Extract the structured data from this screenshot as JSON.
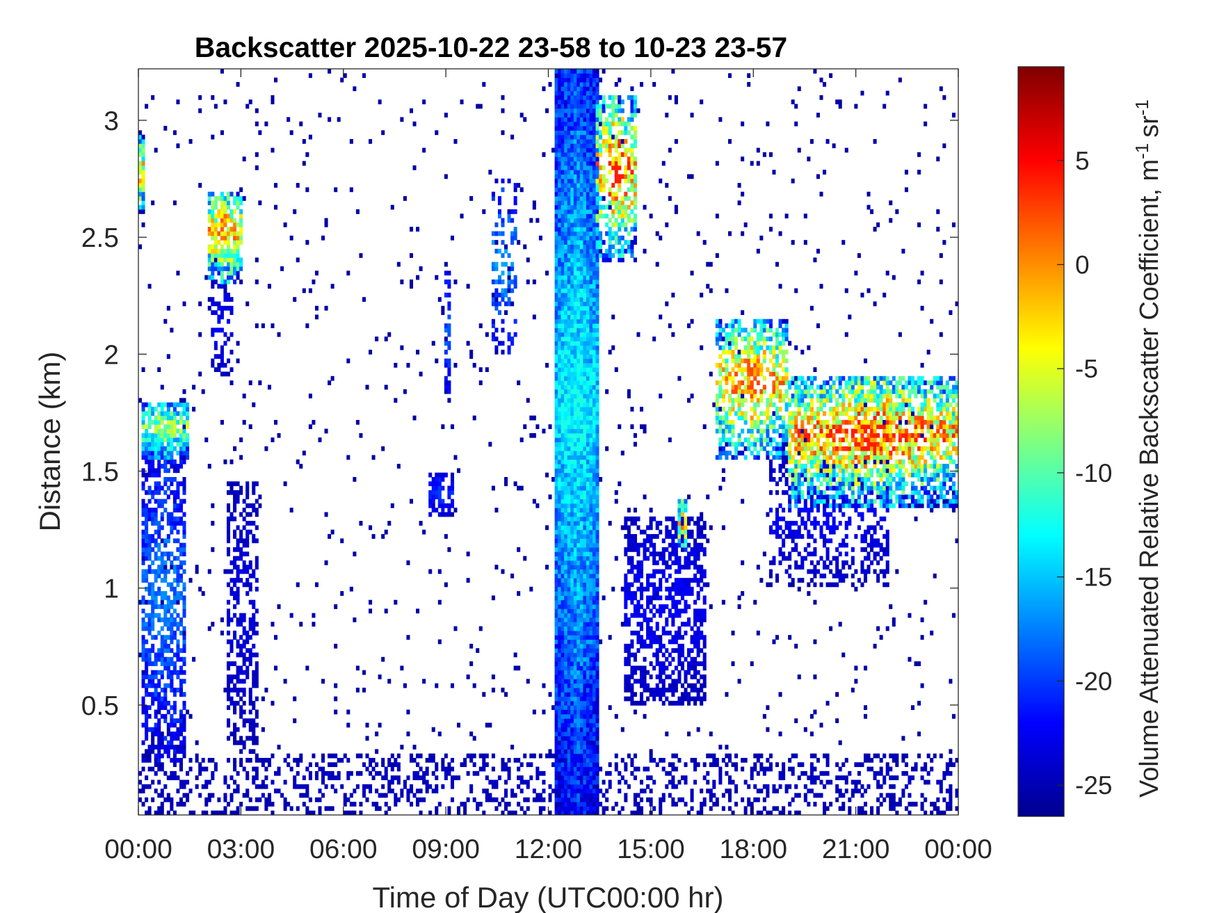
{
  "chart_data": {
    "type": "heatmap",
    "title": "Backscatter 2025-10-22 23-58 to 10-23 23-57",
    "xlabel": "Time of Day (UTC00:00 hr)",
    "ylabel": "Distance (km)",
    "colorbar_label": "Volume Attenuated Relative Backscatter Coefficient, m",
    "colorbar_units": {
      "m_exp": "-1",
      "sr": "sr",
      "sr_exp": "-1"
    },
    "xlim_hours": [
      0,
      24
    ],
    "ylim_km": [
      0.03,
      3.22
    ],
    "clim": [
      -26.5,
      9.5
    ],
    "x_ticks": [
      {
        "hour": 0,
        "label": "00:00"
      },
      {
        "hour": 3,
        "label": "03:00"
      },
      {
        "hour": 6,
        "label": "06:00"
      },
      {
        "hour": 9,
        "label": "09:00"
      },
      {
        "hour": 12,
        "label": "12:00"
      },
      {
        "hour": 15,
        "label": "15:00"
      },
      {
        "hour": 18,
        "label": "18:00"
      },
      {
        "hour": 21,
        "label": "21:00"
      },
      {
        "hour": 24,
        "label": "00:00"
      }
    ],
    "y_ticks": [
      {
        "km": 0.5,
        "label": "0.5"
      },
      {
        "km": 1,
        "label": "1"
      },
      {
        "km": 1.5,
        "label": "1.5"
      },
      {
        "km": 2,
        "label": "2"
      },
      {
        "km": 2.5,
        "label": "2.5"
      },
      {
        "km": 3,
        "label": "3"
      }
    ],
    "colorbar_ticks": [
      {
        "value": -25,
        "label": "-25"
      },
      {
        "value": -20,
        "label": "-20"
      },
      {
        "value": -15,
        "label": "-15"
      },
      {
        "value": -10,
        "label": "-10"
      },
      {
        "value": -5,
        "label": "-5"
      },
      {
        "value": 0,
        "label": "0"
      },
      {
        "value": 5,
        "label": "5"
      }
    ],
    "colormap": "jet",
    "grid": false,
    "background_color": "#ffffff",
    "features": [
      {
        "t0": 0.0,
        "t1": 0.15,
        "z0": 2.6,
        "z1": 2.93,
        "peak": 2.0,
        "density": 0.9,
        "desc": "thin layer near 2.8 km at start"
      },
      {
        "t0": 0.05,
        "t1": 1.5,
        "z0": 1.55,
        "z1": 1.8,
        "peak": -5,
        "density": 0.85,
        "desc": "cloud base ~1.6 km 00:00-01:30"
      },
      {
        "t0": 0.1,
        "t1": 1.4,
        "z0": 0.25,
        "z1": 1.55,
        "peak": -17,
        "density": 0.6,
        "desc": "boundary layer below cloud"
      },
      {
        "t0": 2.0,
        "t1": 3.0,
        "z0": 2.3,
        "z1": 2.7,
        "peak": 2.0,
        "density": 0.75,
        "desc": "rising layer 2.3-2.7 km around 02:30"
      },
      {
        "t0": 2.1,
        "t1": 2.8,
        "z0": 1.9,
        "z1": 2.3,
        "peak": -22,
        "density": 0.4,
        "desc": "sparse returns below layer"
      },
      {
        "t0": 2.6,
        "t1": 3.5,
        "z0": 0.3,
        "z1": 1.45,
        "peak": -23,
        "density": 0.45,
        "desc": "sparse column 02:40-03:30"
      },
      {
        "t0": 8.5,
        "t1": 9.2,
        "z0": 1.3,
        "z1": 1.5,
        "peak": -20,
        "density": 0.6,
        "desc": "small patch near 1.4 km at 09:00"
      },
      {
        "t0": 8.95,
        "t1": 9.15,
        "z0": 1.8,
        "z1": 2.35,
        "peak": -18,
        "density": 0.6,
        "desc": "streak near 2 km at 09:00"
      },
      {
        "t0": 10.3,
        "t1": 11.1,
        "z0": 2.0,
        "z1": 2.75,
        "peak": -16,
        "density": 0.35,
        "desc": "sparse high returns 10:30-11:00"
      },
      {
        "t0": 12.15,
        "t1": 13.5,
        "z0": 0.03,
        "z1": 3.22,
        "peak": -12,
        "density": 1.0,
        "desc": "full-column precipitation 12:10-13:30"
      },
      {
        "t0": 13.4,
        "t1": 14.6,
        "z0": 2.4,
        "z1": 3.1,
        "peak": 4.0,
        "density": 0.6,
        "desc": "high cloud 2.6-3.1 km 13:30-14:30"
      },
      {
        "t0": 14.2,
        "t1": 16.6,
        "z0": 0.5,
        "z1": 1.3,
        "peak": -22,
        "density": 0.55,
        "desc": "lower layer 14:30-16:30"
      },
      {
        "t0": 15.8,
        "t1": 16.1,
        "z0": 1.15,
        "z1": 1.38,
        "peak": 1.0,
        "density": 0.7,
        "desc": "small cloud near 1.3 km at 16:00"
      },
      {
        "t0": 16.9,
        "t1": 19.0,
        "z0": 1.55,
        "z1": 2.15,
        "peak": 2.5,
        "density": 0.6,
        "desc": "rising layer 17:00-19:00 peaking near 2 km"
      },
      {
        "t0": 19.0,
        "t1": 24.0,
        "z0": 1.35,
        "z1": 1.9,
        "peak": 4.0,
        "density": 0.7,
        "desc": "cloud layer ~1.7 km 19:00-24:00"
      },
      {
        "t0": 18.5,
        "t1": 22.0,
        "z0": 1.0,
        "z1": 1.55,
        "peak": -22,
        "density": 0.35,
        "desc": "sparse returns below layer"
      },
      {
        "t0": 0.0,
        "t1": 24.0,
        "z0": 0.03,
        "z1": 0.3,
        "peak": -24,
        "density": 0.28,
        "desc": "near-surface noise"
      },
      {
        "t0": 0.0,
        "t1": 24.0,
        "z0": 0.03,
        "z1": 3.22,
        "peak": -25,
        "density": 0.025,
        "desc": "scattered noise"
      }
    ]
  }
}
